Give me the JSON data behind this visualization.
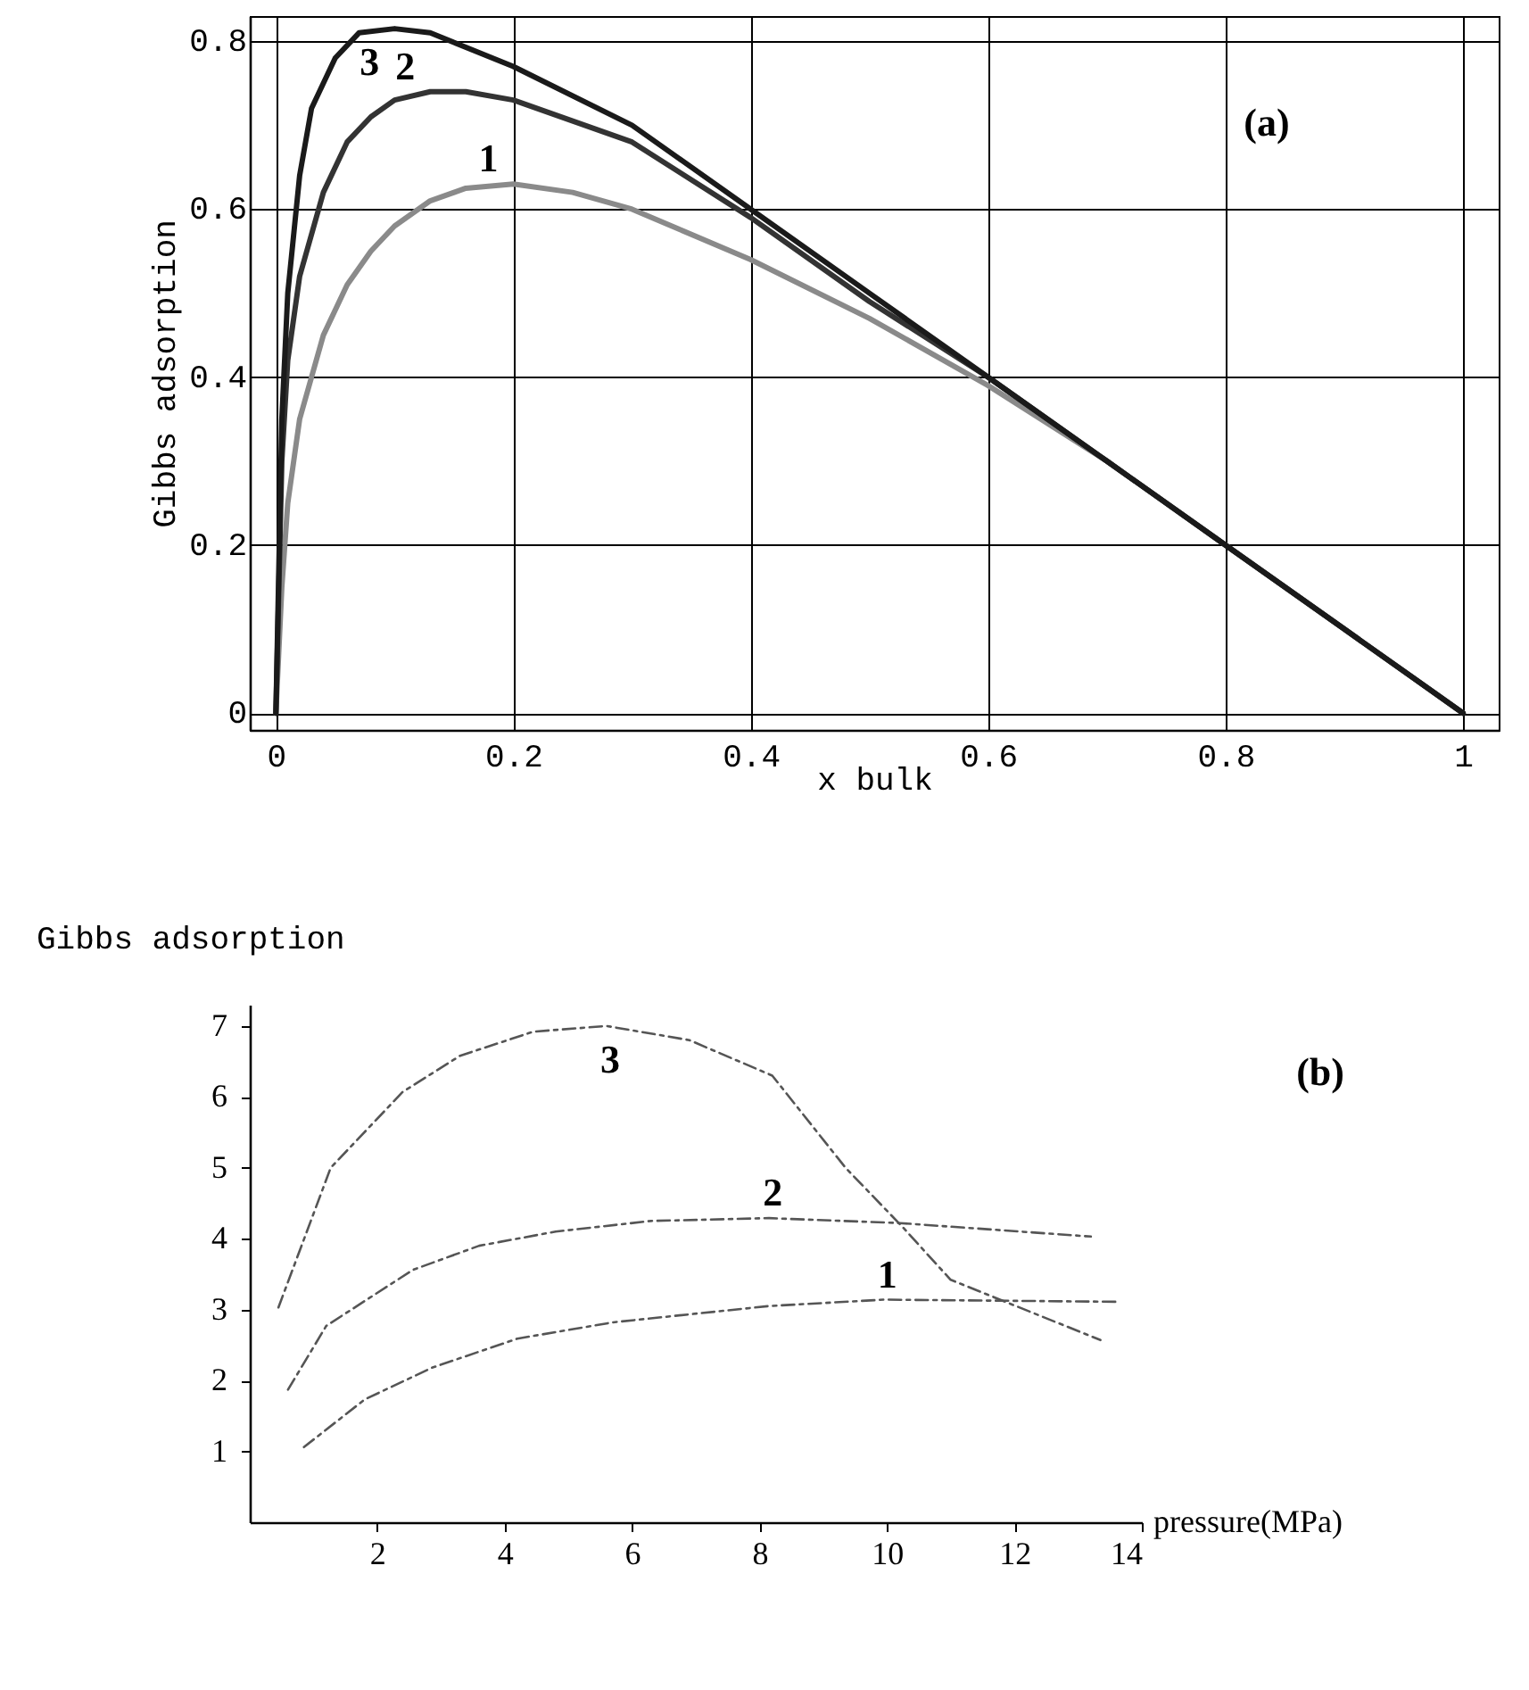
{
  "chart_data": [
    {
      "type": "line",
      "xlabel": "x bulk",
      "ylabel": "Gibbs adsorption",
      "xlim": [
        -0.022,
        1.03
      ],
      "ylim": [
        -0.02,
        0.83
      ],
      "xticks": [
        0,
        0.2,
        0.4,
        0.6,
        0.8,
        1
      ],
      "yticks": [
        0,
        0.2,
        0.4,
        0.6,
        0.8
      ],
      "grid": true,
      "line_style": "solid",
      "annotations": [
        "(a)"
      ],
      "series": [
        {
          "name": "1",
          "color": "#8a8a8a",
          "x": [
            0,
            0.005,
            0.01,
            0.02,
            0.04,
            0.06,
            0.08,
            0.1,
            0.13,
            0.16,
            0.2,
            0.25,
            0.3,
            0.4,
            0.5,
            0.6,
            0.7,
            0.8,
            0.9,
            1
          ],
          "values": [
            0,
            0.15,
            0.25,
            0.35,
            0.45,
            0.51,
            0.55,
            0.58,
            0.61,
            0.625,
            0.63,
            0.62,
            0.6,
            0.54,
            0.47,
            0.39,
            0.3,
            0.2,
            0.1,
            0
          ]
        },
        {
          "name": "2",
          "color": "#333333",
          "x": [
            0,
            0.005,
            0.01,
            0.02,
            0.04,
            0.06,
            0.08,
            0.1,
            0.13,
            0.16,
            0.2,
            0.3,
            0.4,
            0.5,
            0.6,
            0.7,
            0.8,
            0.9,
            1
          ],
          "values": [
            0,
            0.3,
            0.42,
            0.52,
            0.62,
            0.68,
            0.71,
            0.73,
            0.74,
            0.74,
            0.73,
            0.68,
            0.59,
            0.49,
            0.4,
            0.3,
            0.2,
            0.1,
            0
          ]
        },
        {
          "name": "3",
          "color": "#1a1a1a",
          "x": [
            0,
            0.005,
            0.01,
            0.02,
            0.03,
            0.05,
            0.07,
            0.1,
            0.13,
            0.2,
            0.3,
            0.4,
            0.5,
            0.6,
            0.7,
            0.8,
            0.9,
            1
          ],
          "values": [
            0,
            0.35,
            0.5,
            0.64,
            0.72,
            0.78,
            0.81,
            0.815,
            0.81,
            0.77,
            0.7,
            0.6,
            0.5,
            0.4,
            0.3,
            0.2,
            0.1,
            0
          ]
        }
      ]
    },
    {
      "type": "line",
      "xlabel": "pressure(MPa)",
      "ylabel": "Gibbs  adsorption",
      "xlim": [
        0,
        14
      ],
      "ylim": [
        0,
        7.3
      ],
      "xticks": [
        2,
        4,
        6,
        8,
        10,
        12,
        14
      ],
      "yticks": [
        1,
        2,
        3,
        4,
        5,
        6,
        7
      ],
      "line_style": "dashed",
      "annotations": [
        "(b)"
      ],
      "series": [
        {
          "name": "1",
          "color": "#555555",
          "x": [
            0.85,
            1.8,
            2.86,
            4.2,
            5.7,
            8.15,
            9.95,
            13.6
          ],
          "values": [
            1.06,
            1.73,
            2.18,
            2.59,
            2.82,
            3.05,
            3.14,
            3.11
          ]
        },
        {
          "name": "2",
          "color": "#555555",
          "x": [
            0.6,
            1.2,
            2.56,
            3.6,
            4.8,
            6.3,
            8.15,
            10.2,
            13.2
          ],
          "values": [
            1.87,
            2.77,
            3.56,
            3.9,
            4.1,
            4.25,
            4.29,
            4.22,
            4.03
          ]
        },
        {
          "name": "3",
          "color": "#555555",
          "x": [
            0.45,
            1.27,
            2.4,
            3.3,
            4.45,
            5.6,
            6.9,
            8.2,
            9.35,
            10.25,
            11.0,
            13.35
          ],
          "values": [
            3.03,
            5.0,
            6.07,
            6.58,
            6.92,
            7.0,
            6.8,
            6.3,
            5.0,
            4.16,
            3.42,
            2.57
          ]
        }
      ]
    }
  ]
}
